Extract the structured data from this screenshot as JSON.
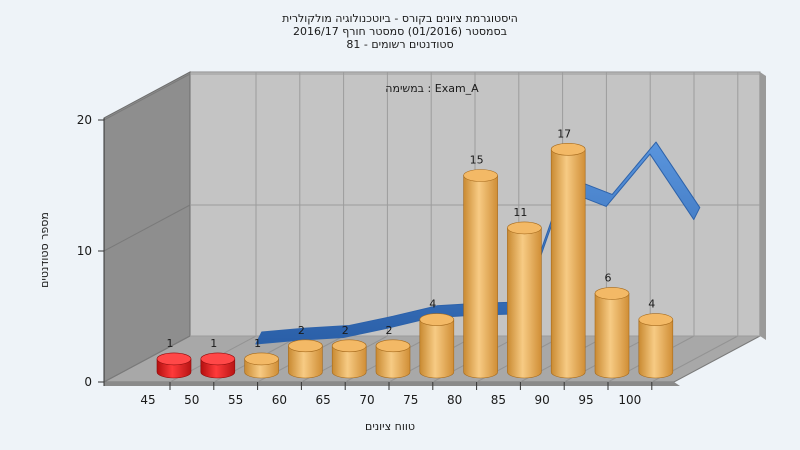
{
  "chart_data": {
    "type": "bar",
    "title_lines": [
      "היסטוגרמת ציונים בקורס - ביוטכנולוגיה מולקולרית",
      "בסמסטר  (01/2016)  סמסטר חורף 2016/17",
      "סטודנטים רשומים - 81"
    ],
    "annotation": "במשימה : Exam_A",
    "xlabel": "טווח ציונים",
    "ylabel": "מספר סטודנטים",
    "categories": [
      "45",
      "50",
      "55",
      "60",
      "65",
      "70",
      "75",
      "80",
      "85",
      "90",
      "95",
      "100"
    ],
    "values": [
      1,
      1,
      1,
      2,
      2,
      2,
      4,
      15,
      11,
      17,
      6,
      4
    ],
    "y_ticks": [
      "0",
      "10",
      "20"
    ],
    "ylim": [
      0,
      20
    ],
    "bar_colors": [
      "red",
      "red",
      "orange",
      "orange",
      "orange",
      "orange",
      "orange",
      "orange",
      "orange",
      "orange",
      "orange",
      "orange"
    ],
    "colors": {
      "fail": "#d81818",
      "pass": "#e8a448",
      "curve": "#3a78c8",
      "plot_bg": "#c4c4c4",
      "side_wall": "#8e8e8e",
      "floor": "#a8a8a8"
    },
    "distribution_curve": {
      "x": [
        50,
        55,
        60,
        65,
        70,
        75,
        80,
        85,
        90,
        95,
        100
      ],
      "y": [
        0,
        0.3,
        0.5,
        1.2,
        2.0,
        2.2,
        2.3,
        11.8,
        10.5,
        14.5,
        9.5
      ]
    },
    "grid": true
  }
}
